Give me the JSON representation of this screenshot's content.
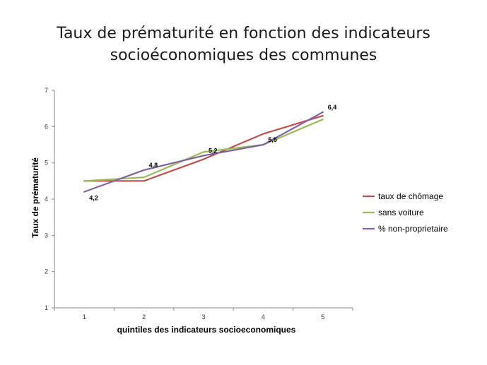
{
  "chart_data": {
    "type": "line",
    "title_line1": "Taux de prématurité en fonction des indicateurs",
    "title_line2": "socioéconomiques des communes",
    "xlabel": "quintiles des indicateurs socioeconomiques",
    "ylabel": "Taux de prématurité",
    "x": [
      1,
      2,
      3,
      4,
      5
    ],
    "xlim": [
      0.5,
      5.5
    ],
    "ylim": [
      1,
      7
    ],
    "yticks": [
      1,
      2,
      3,
      4,
      5,
      6,
      7
    ],
    "grid": false,
    "legend_position": "right",
    "series": [
      {
        "name": "taux de chômage",
        "color": "#c0504d",
        "values": [
          4.5,
          4.5,
          5.1,
          5.8,
          6.3
        ]
      },
      {
        "name": "sans voiture",
        "color": "#9bbb59",
        "values": [
          4.5,
          4.6,
          5.3,
          5.5,
          6.2
        ]
      },
      {
        "name": "% non-proprietaire",
        "color": "#8064a2",
        "values": [
          4.2,
          4.8,
          5.2,
          5.5,
          6.4
        ]
      }
    ],
    "data_labels": [
      {
        "x": 1,
        "y": 4.2,
        "text": "4,2"
      },
      {
        "x": 2,
        "y": 4.8,
        "text": "4,8"
      },
      {
        "x": 3,
        "y": 5.2,
        "text": "5,2"
      },
      {
        "x": 4,
        "y": 5.5,
        "text": "5,5"
      },
      {
        "x": 5,
        "y": 6.4,
        "text": "6,4"
      }
    ]
  }
}
